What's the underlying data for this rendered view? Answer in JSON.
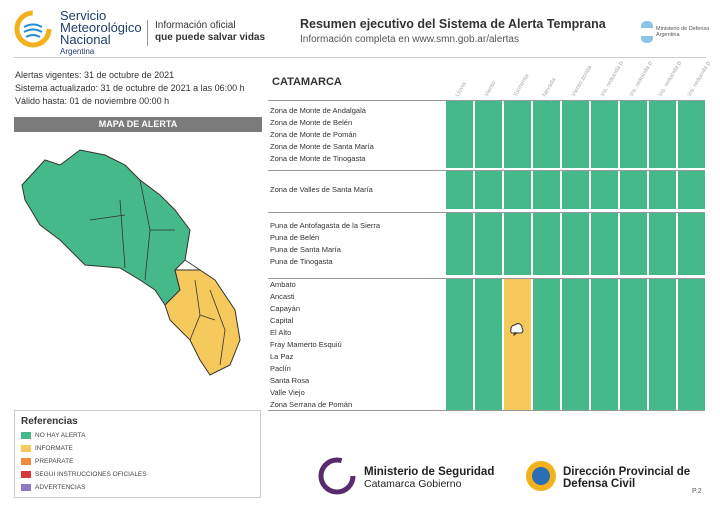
{
  "header": {
    "org": [
      "Servicio",
      "Meteorológico",
      "Nacional",
      "Argentina"
    ],
    "tagline": [
      "Información oficial",
      "que puede salvar vidas"
    ],
    "title": "Resumen ejecutivo del Sistema de Alerta Temprana",
    "subtitle": "Información completa en www.smn.gob.ar/alertas",
    "ministry": [
      "Ministerio de Defensa",
      "Argentina"
    ]
  },
  "info": [
    "Alertas vigentes: 31 de octubre de 2021",
    "Sistema actualizado: 31 de octubre de 2021 a las 06:00 h",
    "Válido hasta: 01 de noviembre 00:00 h"
  ],
  "map_title": "MAPA DE ALERTA",
  "references": {
    "title": "Referencias",
    "items": [
      {
        "label": "NO HAY ALERTA",
        "color": "#46b98a"
      },
      {
        "label": "INFORMATE",
        "color": "#f6c95c"
      },
      {
        "label": "PREPARATE",
        "color": "#f08a3c"
      },
      {
        "label": "SEGUI INSTRUCCIONES OFICIALES",
        "color": "#d9383a"
      },
      {
        "label": "ADVERTENCIAS",
        "color": "#8e7cc3"
      }
    ]
  },
  "table": {
    "province": "CATAMARCA",
    "columns": [
      "Lluvia",
      "Viento",
      "Tormenta",
      "Nevada",
      "Viento zonda",
      "Vis. reducida por polvo/arena",
      "Vis. reducida por ceniza volcánica",
      "Vis. reducida por humo",
      "Vis. reducida por niebla"
    ],
    "groups": [
      {
        "zones": [
          "Zona de Monte de Andalgalá",
          "Zona de Monte de Belén",
          "Zona de Monte de Pomán",
          "Zona de Monte de Santa María",
          "Zona de Monte de Tinogasta"
        ],
        "colors": [
          "#46b98a",
          "#46b98a",
          "#46b98a",
          "#46b98a",
          "#46b98a",
          "#46b98a",
          "#46b98a",
          "#46b98a",
          "#46b98a"
        ]
      },
      {
        "zones": [
          "Zona de Valles de Santa María"
        ],
        "colors": [
          "#46b98a",
          "#46b98a",
          "#46b98a",
          "#46b98a",
          "#46b98a",
          "#46b98a",
          "#46b98a",
          "#46b98a",
          "#46b98a"
        ]
      },
      {
        "zones": [
          "Puna de Antofagasta de la Sierra",
          "Puna de Belén",
          "Puna de Santa María",
          "Puna de Tinogasta"
        ],
        "colors": [
          "#46b98a",
          "#46b98a",
          "#46b98a",
          "#46b98a",
          "#46b98a",
          "#46b98a",
          "#46b98a",
          "#46b98a",
          "#46b98a"
        ]
      },
      {
        "zones": [
          "Ambato",
          "Ancasti",
          "Capayán",
          "Capital",
          "El Alto",
          "Fray Mamerto Esquiú",
          "La Paz",
          "Paclín",
          "Santa Rosa",
          "Valle Viejo",
          "Zona Serrana de Pomán"
        ],
        "colors": [
          "#46b98a",
          "#46b98a",
          "#f6c95c",
          "#46b98a",
          "#46b98a",
          "#46b98a",
          "#46b98a",
          "#46b98a",
          "#46b98a"
        ]
      }
    ]
  },
  "footer": {
    "security": [
      "Ministerio de Seguridad",
      "Catamarca Gobierno"
    ],
    "civil": [
      "Dirección Provincial de",
      "Defensa Civil"
    ],
    "page": "P.2"
  }
}
